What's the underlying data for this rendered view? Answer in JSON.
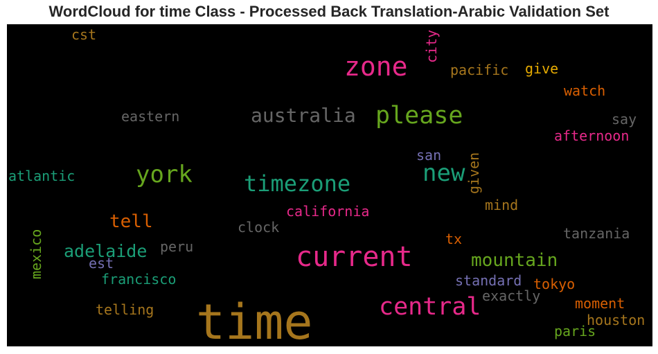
{
  "title": "WordCloud for time Class - Processed Back Translation-Arabic Validation Set",
  "palette": {
    "background": "#000000",
    "pink": "#e7298a",
    "green": "#66a61e",
    "teal": "#1b9e77",
    "orange": "#d95f02",
    "gold": "#a6761d",
    "yellow": "#e6ab02",
    "gray": "#666666",
    "purple": "#7570b3"
  },
  "words": [
    {
      "text": "time",
      "color": "#a6761d"
    },
    {
      "text": "current",
      "color": "#e7298a"
    },
    {
      "text": "zone",
      "color": "#e7298a"
    },
    {
      "text": "central",
      "color": "#e7298a"
    },
    {
      "text": "please",
      "color": "#66a61e"
    },
    {
      "text": "timezone",
      "color": "#1b9e77"
    },
    {
      "text": "australia",
      "color": "#666666"
    },
    {
      "text": "york",
      "color": "#66a61e"
    },
    {
      "text": "new",
      "color": "#1b9e77"
    },
    {
      "text": "mountain",
      "color": "#66a61e"
    },
    {
      "text": "adelaide",
      "color": "#1b9e77"
    },
    {
      "text": "tell",
      "color": "#d95f02"
    },
    {
      "text": "city",
      "color": "#e7298a"
    },
    {
      "text": "given",
      "color": "#a6761d"
    },
    {
      "text": "mexico",
      "color": "#66a61e"
    },
    {
      "text": "pacific",
      "color": "#a6761d"
    },
    {
      "text": "give",
      "color": "#e6ab02"
    },
    {
      "text": "watch",
      "color": "#d95f02"
    },
    {
      "text": "say",
      "color": "#666666"
    },
    {
      "text": "afternoon",
      "color": "#e7298a"
    },
    {
      "text": "eastern",
      "color": "#666666"
    },
    {
      "text": "cst",
      "color": "#a6761d"
    },
    {
      "text": "atlantic",
      "color": "#1b9e77"
    },
    {
      "text": "san",
      "color": "#7570b3"
    },
    {
      "text": "california",
      "color": "#e7298a"
    },
    {
      "text": "mind",
      "color": "#a6761d"
    },
    {
      "text": "clock",
      "color": "#666666"
    },
    {
      "text": "tanzania",
      "color": "#666666"
    },
    {
      "text": "peru",
      "color": "#666666"
    },
    {
      "text": "tx",
      "color": "#d95f02"
    },
    {
      "text": "est",
      "color": "#7570b3"
    },
    {
      "text": "francisco",
      "color": "#1b9e77"
    },
    {
      "text": "standard",
      "color": "#7570b3"
    },
    {
      "text": "tokyo",
      "color": "#d95f02"
    },
    {
      "text": "exactly",
      "color": "#666666"
    },
    {
      "text": "telling",
      "color": "#a6761d"
    },
    {
      "text": "moment",
      "color": "#d95f02"
    },
    {
      "text": "houston",
      "color": "#a6761d"
    },
    {
      "text": "paris",
      "color": "#66a61e"
    }
  ]
}
